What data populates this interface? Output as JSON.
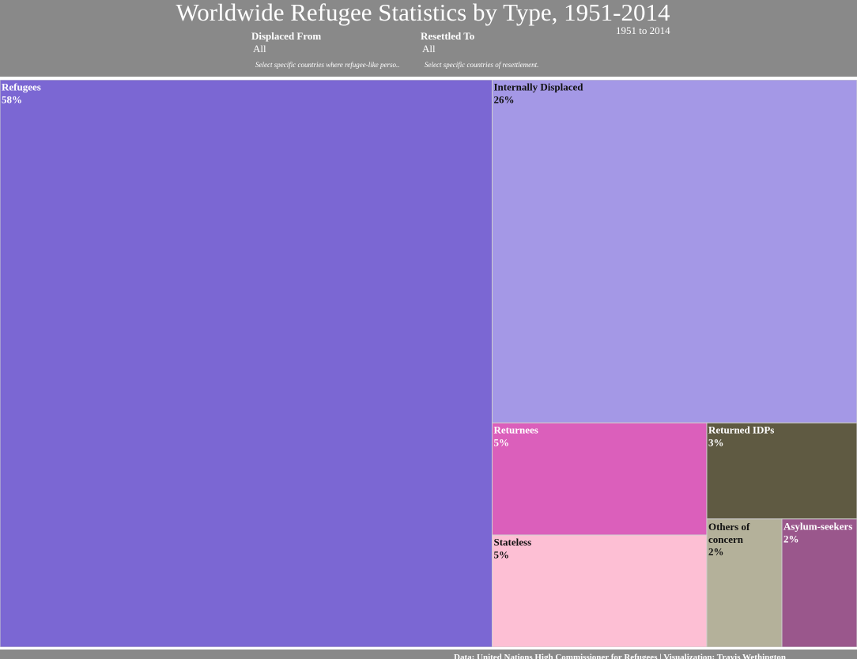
{
  "chart_data": {
    "type": "treemap",
    "title": "Worldwide Refugee Statistics by Type, 1951-2014",
    "subtitle": "1951 to 2014",
    "categories": [
      "Refugees",
      "Internally Displaced",
      "Returnees",
      "Stateless",
      "Returned IDPs",
      "Others of concern",
      "Asylum-seekers"
    ],
    "values": [
      58,
      26,
      5,
      5,
      3,
      2,
      2
    ],
    "value_labels": [
      "58%",
      "26%",
      "5%",
      "5%",
      "3%",
      "2%",
      "2%"
    ],
    "colors": [
      "#7b67d3",
      "#a498e6",
      "#db5fbb",
      "#fdbfd4",
      "#5f5a42",
      "#b4b19a",
      "#9a578c"
    ]
  },
  "filters": [
    {
      "label": "Displaced From",
      "value": "All",
      "hint": "Select specific countries where refugee-like perso.."
    },
    {
      "label": "Resettled To",
      "value": "All",
      "hint": "Select specific countries of resettlement."
    }
  ],
  "footer": "Data: United Nations High Commissioner for Refugees | Visualization: Travis Wethington"
}
